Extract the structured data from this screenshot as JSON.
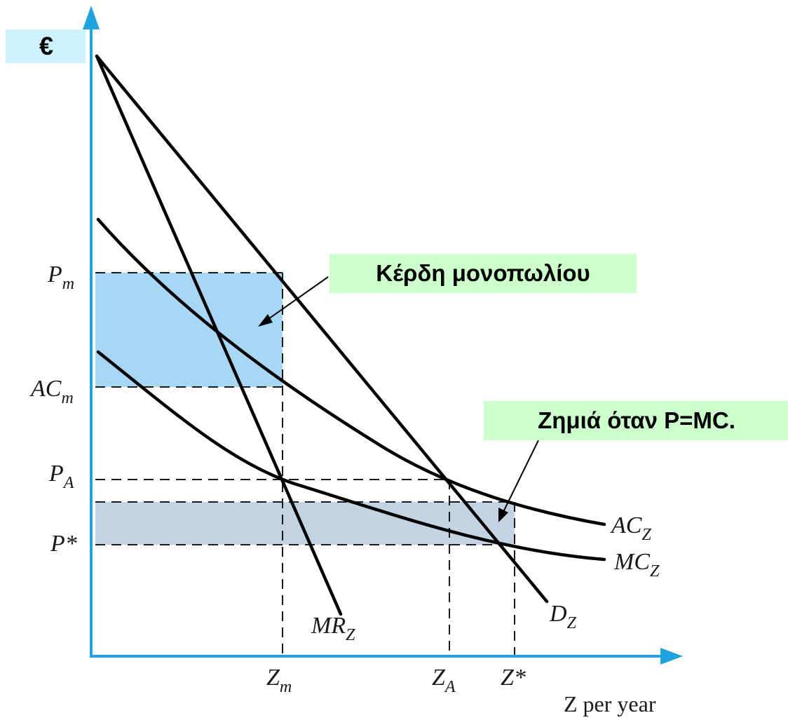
{
  "axes": {
    "y_title": "€",
    "x_title": "Z per year"
  },
  "y_ticks": {
    "p_m": {
      "base": "P",
      "sub": "m"
    },
    "ac_m": {
      "base": "AC",
      "sub": "m"
    },
    "p_a": {
      "base": "P",
      "sub": "A"
    },
    "p_star": {
      "base": "P*",
      "sub": ""
    }
  },
  "x_ticks": {
    "z_m": {
      "base": "Z",
      "sub": "m"
    },
    "z_a": {
      "base": "Z",
      "sub": "A"
    },
    "z_star": {
      "base": "Z*",
      "sub": ""
    }
  },
  "curves": {
    "mr": {
      "base": "MR",
      "sub": "Z"
    },
    "d": {
      "base": "D",
      "sub": "Z"
    },
    "ac": {
      "base": "AC",
      "sub": "Z"
    },
    "mc": {
      "base": "MC",
      "sub": "Z"
    }
  },
  "callouts": {
    "profit": "Κέρδη μονοπωλίου",
    "loss": "Ζημιά όταν P=MC."
  },
  "colors": {
    "axis": "#1fa3e0",
    "profit_area": "#a8d6f5",
    "loss_area": "#c3d3e2",
    "callout_bg": "#ccffcc",
    "currency_bg": "#ccf2ff",
    "curve": "#000000"
  }
}
